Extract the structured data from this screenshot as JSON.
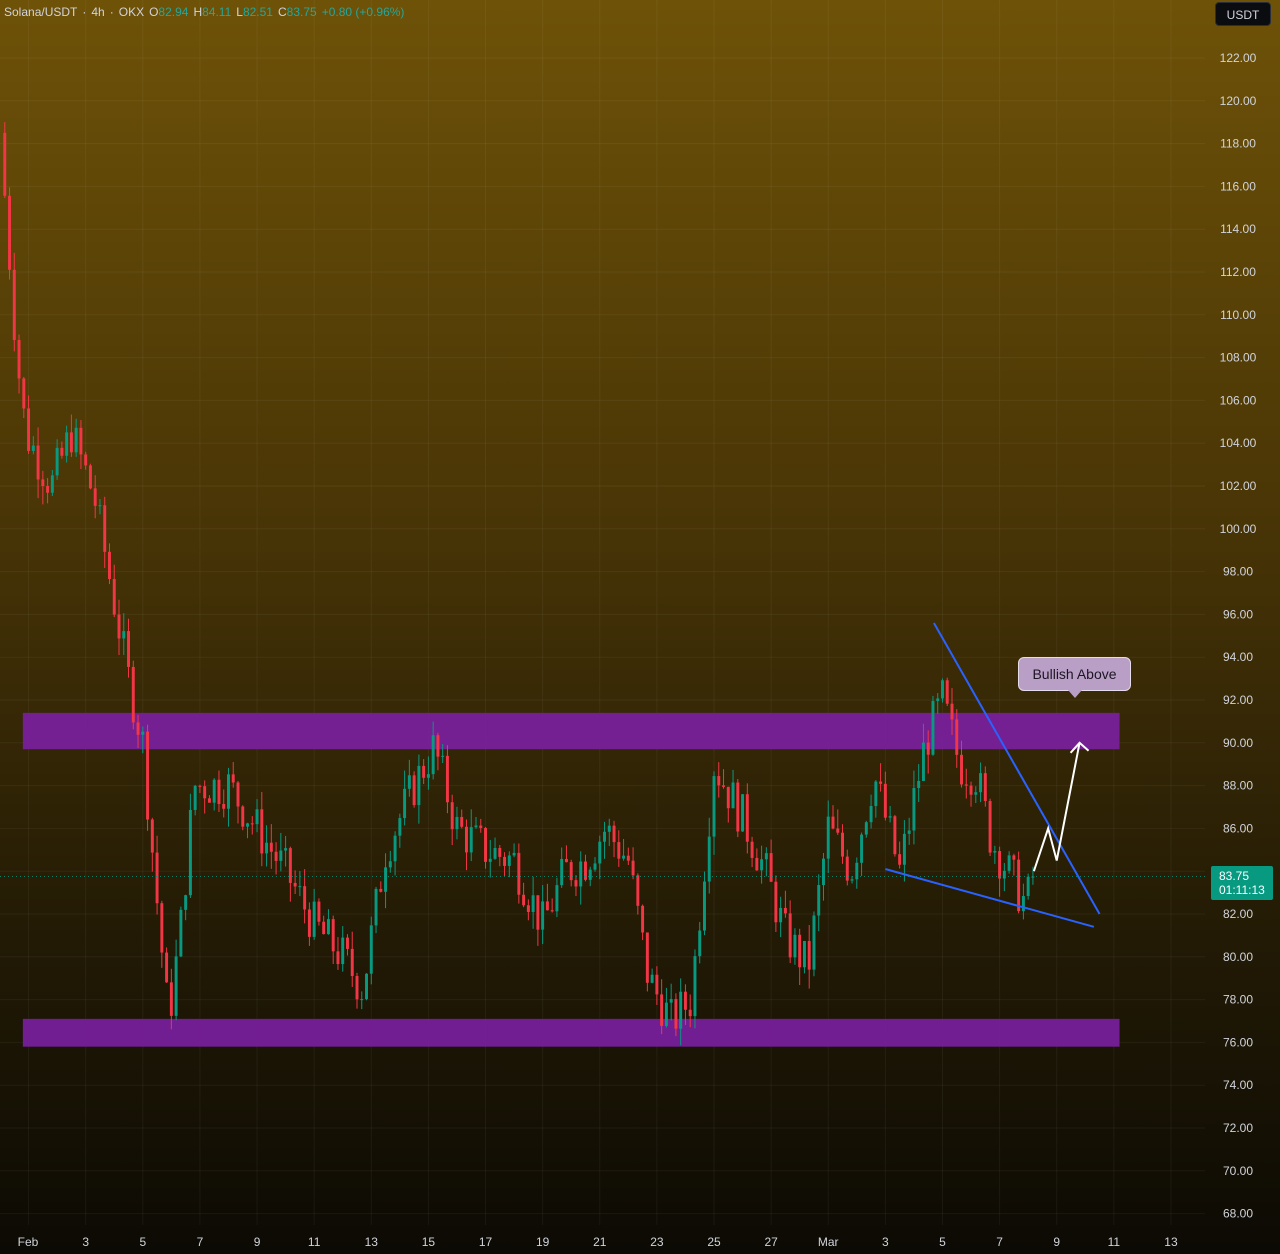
{
  "legend": {
    "symbol": "Solana/USDT",
    "interval": "4h",
    "exchange": "OKX",
    "open_key": "O",
    "open": "82.94",
    "high_key": "H",
    "high": "84.11",
    "low_key": "L",
    "low": "82.51",
    "close_key": "C",
    "close": "83.75",
    "change": "+0.80 (+0.96%)"
  },
  "currency": "USDT",
  "last_price": {
    "price": "83.75",
    "countdown": "01:11:13"
  },
  "callout": "Bullish Above",
  "colors": {
    "up": "#089981",
    "down": "#f23645",
    "zone": "#7b1fa2",
    "trendline": "#2962ff",
    "projection": "#ffffff"
  },
  "chart_data": {
    "type": "candlestick",
    "symbol": "Solana/USDT",
    "timeframe": "4h",
    "x_range_days_from_feb_1": [
      0,
      41
    ],
    "ylim": [
      67,
      124
    ],
    "y_ticks": [
      "122.00",
      "120.00",
      "118.00",
      "116.00",
      "114.00",
      "112.00",
      "110.00",
      "108.00",
      "106.00",
      "104.00",
      "102.00",
      "100.00",
      "98.00",
      "96.00",
      "94.00",
      "92.00",
      "90.00",
      "88.00",
      "86.00",
      "84.00",
      "82.00",
      "80.00",
      "78.00",
      "76.00",
      "74.00",
      "72.00",
      "70.00",
      "68.00"
    ],
    "x_ticks": [
      {
        "label": "Feb",
        "day": 1
      },
      {
        "label": "3",
        "day": 3
      },
      {
        "label": "5",
        "day": 5
      },
      {
        "label": "7",
        "day": 7
      },
      {
        "label": "9",
        "day": 9
      },
      {
        "label": "11",
        "day": 11
      },
      {
        "label": "13",
        "day": 13
      },
      {
        "label": "15",
        "day": 15
      },
      {
        "label": "17",
        "day": 17
      },
      {
        "label": "19",
        "day": 19
      },
      {
        "label": "21",
        "day": 21
      },
      {
        "label": "23",
        "day": 23
      },
      {
        "label": "25",
        "day": 25
      },
      {
        "label": "27",
        "day": 27
      },
      {
        "label": "Mar",
        "day": 29
      },
      {
        "label": "3",
        "day": 31
      },
      {
        "label": "5",
        "day": 33
      },
      {
        "label": "7",
        "day": 35
      },
      {
        "label": "9",
        "day": 37
      },
      {
        "label": "11",
        "day": 39
      },
      {
        "label": "13",
        "day": 41
      }
    ],
    "key_closes": [
      {
        "day": 0.0,
        "close": 118.5
      },
      {
        "day": 0.6,
        "close": 108.0
      },
      {
        "day": 0.9,
        "close": 104.5
      },
      {
        "day": 1.8,
        "close": 102.0
      },
      {
        "day": 2.5,
        "close": 104.5
      },
      {
        "day": 3.3,
        "close": 101.5
      },
      {
        "day": 3.8,
        "close": 98.0
      },
      {
        "day": 4.5,
        "close": 93.0
      },
      {
        "day": 5.0,
        "close": 90.0
      },
      {
        "day": 5.4,
        "close": 84.0
      },
      {
        "day": 5.9,
        "close": 77.0
      },
      {
        "day": 6.3,
        "close": 81.0
      },
      {
        "day": 6.8,
        "close": 88.0
      },
      {
        "day": 8.0,
        "close": 88.0
      },
      {
        "day": 9.0,
        "close": 86.0
      },
      {
        "day": 10.0,
        "close": 84.0
      },
      {
        "day": 11.0,
        "close": 81.5
      },
      {
        "day": 12.0,
        "close": 80.0
      },
      {
        "day": 12.7,
        "close": 78.5
      },
      {
        "day": 13.5,
        "close": 85.0
      },
      {
        "day": 14.5,
        "close": 88.0
      },
      {
        "day": 15.2,
        "close": 89.8
      },
      {
        "day": 16.0,
        "close": 86.0
      },
      {
        "day": 17.0,
        "close": 85.0
      },
      {
        "day": 18.0,
        "close": 84.5
      },
      {
        "day": 19.0,
        "close": 81.5
      },
      {
        "day": 19.8,
        "close": 84.0
      },
      {
        "day": 20.5,
        "close": 84.5
      },
      {
        "day": 21.2,
        "close": 86.0
      },
      {
        "day": 22.0,
        "close": 84.5
      },
      {
        "day": 22.7,
        "close": 79.0
      },
      {
        "day": 23.5,
        "close": 77.0
      },
      {
        "day": 24.2,
        "close": 78.0
      },
      {
        "day": 25.0,
        "close": 89.0
      },
      {
        "day": 26.0,
        "close": 86.5
      },
      {
        "day": 26.8,
        "close": 84.0
      },
      {
        "day": 27.5,
        "close": 81.0
      },
      {
        "day": 28.3,
        "close": 79.5
      },
      {
        "day": 29.0,
        "close": 86.0
      },
      {
        "day": 29.8,
        "close": 84.0
      },
      {
        "day": 30.6,
        "close": 88.5
      },
      {
        "day": 31.5,
        "close": 84.0
      },
      {
        "day": 32.4,
        "close": 90.0
      },
      {
        "day": 33.0,
        "close": 92.0
      },
      {
        "day": 33.6,
        "close": 89.0
      },
      {
        "day": 34.2,
        "close": 88.5
      },
      {
        "day": 34.7,
        "close": 85.5
      },
      {
        "day": 35.3,
        "close": 84.0
      },
      {
        "day": 35.9,
        "close": 82.5
      },
      {
        "day": 36.3,
        "close": 83.75
      }
    ],
    "zones": [
      {
        "label": "resistance",
        "from_day": 0.8,
        "to_day": 39.2,
        "low": 89.7,
        "high": 91.4
      },
      {
        "label": "support",
        "from_day": 0.8,
        "to_day": 39.2,
        "low": 75.8,
        "high": 77.1
      }
    ],
    "trendlines": [
      {
        "from": {
          "day": 32.7,
          "price": 95.6
        },
        "to": {
          "day": 38.5,
          "price": 82.0
        }
      },
      {
        "from": {
          "day": 31.0,
          "price": 84.1
        },
        "to": {
          "day": 38.3,
          "price": 81.4
        }
      }
    ],
    "projection": [
      {
        "day": 36.2,
        "price": 84.0
      },
      {
        "day": 36.7,
        "price": 86.0
      },
      {
        "day": 37.0,
        "price": 84.5
      },
      {
        "day": 37.8,
        "price": 90.0
      }
    ],
    "annotation": {
      "text": "Bullish Above",
      "day": 37.6,
      "price": 93.0
    },
    "last_price": 83.75
  }
}
